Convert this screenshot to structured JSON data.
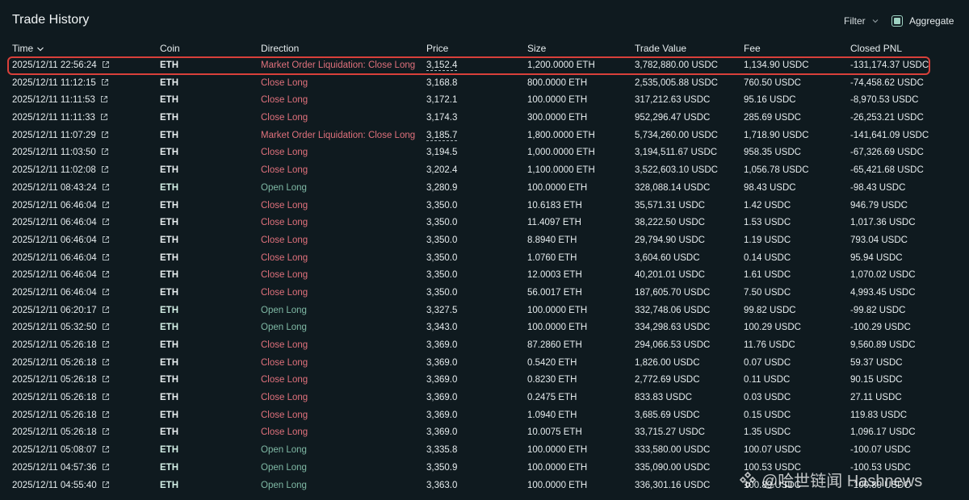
{
  "header": {
    "title": "Trade History",
    "filter_label": "Filter",
    "aggregate_label": "Aggregate"
  },
  "columns": {
    "time": "Time",
    "coin": "Coin",
    "direction": "Direction",
    "price": "Price",
    "size": "Size",
    "trade_value": "Trade Value",
    "fee": "Fee",
    "closed_pnl": "Closed PNL"
  },
  "rows": [
    {
      "time": "2025/12/11 22:56:24",
      "coin": "ETH",
      "direction": "Market Order Liquidation: Close Long",
      "type": "close",
      "price": "3,152.4",
      "price_dashed": true,
      "size": "1,200.0000 ETH",
      "value": "3,782,880.00 USDC",
      "fee": "1,134.90 USDC",
      "pnl": "-131,174.37 USDC"
    },
    {
      "time": "2025/12/11 11:12:15",
      "coin": "ETH",
      "direction": "Close Long",
      "type": "close",
      "price": "3,168.8",
      "size": "800.0000 ETH",
      "value": "2,535,005.88 USDC",
      "fee": "760.50 USDC",
      "pnl": "-74,458.62 USDC"
    },
    {
      "time": "2025/12/11 11:11:53",
      "coin": "ETH",
      "direction": "Close Long",
      "type": "close",
      "price": "3,172.1",
      "size": "100.0000 ETH",
      "value": "317,212.63 USDC",
      "fee": "95.16 USDC",
      "pnl": "-8,970.53 USDC"
    },
    {
      "time": "2025/12/11 11:11:33",
      "coin": "ETH",
      "direction": "Close Long",
      "type": "close",
      "price": "3,174.3",
      "size": "300.0000 ETH",
      "value": "952,296.47 USDC",
      "fee": "285.69 USDC",
      "pnl": "-26,253.21 USDC"
    },
    {
      "time": "2025/12/11 11:07:29",
      "coin": "ETH",
      "direction": "Market Order Liquidation: Close Long",
      "type": "close",
      "price": "3,185.7",
      "price_dashed": true,
      "size": "1,800.0000 ETH",
      "value": "5,734,260.00 USDC",
      "fee": "1,718.90 USDC",
      "pnl": "-141,641.09 USDC"
    },
    {
      "time": "2025/12/11 11:03:50",
      "coin": "ETH",
      "direction": "Close Long",
      "type": "close",
      "price": "3,194.5",
      "size": "1,000.0000 ETH",
      "value": "3,194,511.67 USDC",
      "fee": "958.35 USDC",
      "pnl": "-67,326.69 USDC"
    },
    {
      "time": "2025/12/11 11:02:08",
      "coin": "ETH",
      "direction": "Close Long",
      "type": "close",
      "price": "3,202.4",
      "size": "1,100.0000 ETH",
      "value": "3,522,603.10 USDC",
      "fee": "1,056.78 USDC",
      "pnl": "-65,421.68 USDC"
    },
    {
      "time": "2025/12/11 08:43:24",
      "coin": "ETH",
      "direction": "Open Long",
      "type": "open",
      "price": "3,280.9",
      "size": "100.0000 ETH",
      "value": "328,088.14 USDC",
      "fee": "98.43 USDC",
      "pnl": "-98.43 USDC"
    },
    {
      "time": "2025/12/11 06:46:04",
      "coin": "ETH",
      "direction": "Close Long",
      "type": "close",
      "price": "3,350.0",
      "size": "10.6183 ETH",
      "value": "35,571.31 USDC",
      "fee": "1.42 USDC",
      "pnl": "946.79 USDC"
    },
    {
      "time": "2025/12/11 06:46:04",
      "coin": "ETH",
      "direction": "Close Long",
      "type": "close",
      "price": "3,350.0",
      "size": "11.4097 ETH",
      "value": "38,222.50 USDC",
      "fee": "1.53 USDC",
      "pnl": "1,017.36 USDC"
    },
    {
      "time": "2025/12/11 06:46:04",
      "coin": "ETH",
      "direction": "Close Long",
      "type": "close",
      "price": "3,350.0",
      "size": "8.8940 ETH",
      "value": "29,794.90 USDC",
      "fee": "1.19 USDC",
      "pnl": "793.04 USDC"
    },
    {
      "time": "2025/12/11 06:46:04",
      "coin": "ETH",
      "direction": "Close Long",
      "type": "close",
      "price": "3,350.0",
      "size": "1.0760 ETH",
      "value": "3,604.60 USDC",
      "fee": "0.14 USDC",
      "pnl": "95.94 USDC"
    },
    {
      "time": "2025/12/11 06:46:04",
      "coin": "ETH",
      "direction": "Close Long",
      "type": "close",
      "price": "3,350.0",
      "size": "12.0003 ETH",
      "value": "40,201.01 USDC",
      "fee": "1.61 USDC",
      "pnl": "1,070.02 USDC"
    },
    {
      "time": "2025/12/11 06:46:04",
      "coin": "ETH",
      "direction": "Close Long",
      "type": "close",
      "price": "3,350.0",
      "size": "56.0017 ETH",
      "value": "187,605.70 USDC",
      "fee": "7.50 USDC",
      "pnl": "4,993.45 USDC"
    },
    {
      "time": "2025/12/11 06:20:17",
      "coin": "ETH",
      "direction": "Open Long",
      "type": "open",
      "price": "3,327.5",
      "size": "100.0000 ETH",
      "value": "332,748.06 USDC",
      "fee": "99.82 USDC",
      "pnl": "-99.82 USDC"
    },
    {
      "time": "2025/12/11 05:32:50",
      "coin": "ETH",
      "direction": "Open Long",
      "type": "open",
      "price": "3,343.0",
      "size": "100.0000 ETH",
      "value": "334,298.63 USDC",
      "fee": "100.29 USDC",
      "pnl": "-100.29 USDC"
    },
    {
      "time": "2025/12/11 05:26:18",
      "coin": "ETH",
      "direction": "Close Long",
      "type": "close",
      "price": "3,369.0",
      "size": "87.2860 ETH",
      "value": "294,066.53 USDC",
      "fee": "11.76 USDC",
      "pnl": "9,560.89 USDC"
    },
    {
      "time": "2025/12/11 05:26:18",
      "coin": "ETH",
      "direction": "Close Long",
      "type": "close",
      "price": "3,369.0",
      "size": "0.5420 ETH",
      "value": "1,826.00 USDC",
      "fee": "0.07 USDC",
      "pnl": "59.37 USDC"
    },
    {
      "time": "2025/12/11 05:26:18",
      "coin": "ETH",
      "direction": "Close Long",
      "type": "close",
      "price": "3,369.0",
      "size": "0.8230 ETH",
      "value": "2,772.69 USDC",
      "fee": "0.11 USDC",
      "pnl": "90.15 USDC"
    },
    {
      "time": "2025/12/11 05:26:18",
      "coin": "ETH",
      "direction": "Close Long",
      "type": "close",
      "price": "3,369.0",
      "size": "0.2475 ETH",
      "value": "833.83 USDC",
      "fee": "0.03 USDC",
      "pnl": "27.11 USDC"
    },
    {
      "time": "2025/12/11 05:26:18",
      "coin": "ETH",
      "direction": "Close Long",
      "type": "close",
      "price": "3,369.0",
      "size": "1.0940 ETH",
      "value": "3,685.69 USDC",
      "fee": "0.15 USDC",
      "pnl": "119.83 USDC"
    },
    {
      "time": "2025/12/11 05:26:18",
      "coin": "ETH",
      "direction": "Close Long",
      "type": "close",
      "price": "3,369.0",
      "size": "10.0075 ETH",
      "value": "33,715.27 USDC",
      "fee": "1.35 USDC",
      "pnl": "1,096.17 USDC"
    },
    {
      "time": "2025/12/11 05:08:07",
      "coin": "ETH",
      "direction": "Open Long",
      "type": "open",
      "price": "3,335.8",
      "size": "100.0000 ETH",
      "value": "333,580.00 USDC",
      "fee": "100.07 USDC",
      "pnl": "-100.07 USDC"
    },
    {
      "time": "2025/12/11 04:57:36",
      "coin": "ETH",
      "direction": "Open Long",
      "type": "open",
      "price": "3,350.9",
      "size": "100.0000 ETH",
      "value": "335,090.00 USDC",
      "fee": "100.53 USDC",
      "pnl": "-100.53 USDC"
    },
    {
      "time": "2025/12/11 04:55:40",
      "coin": "ETH",
      "direction": "Open Long",
      "type": "open",
      "price": "3,363.0",
      "size": "100.0000 ETH",
      "value": "336,301.16 USDC",
      "fee": "100.89 USDC",
      "pnl": "-100.89 USDC"
    }
  ],
  "watermark": {
    "text": "@哈世链闻 Hashnews"
  },
  "colors": {
    "background": "#0f1a1f",
    "close": "#e0717c",
    "open": "#7fb9a5",
    "highlight": "#d9403a",
    "accent": "#9fd3c3"
  }
}
